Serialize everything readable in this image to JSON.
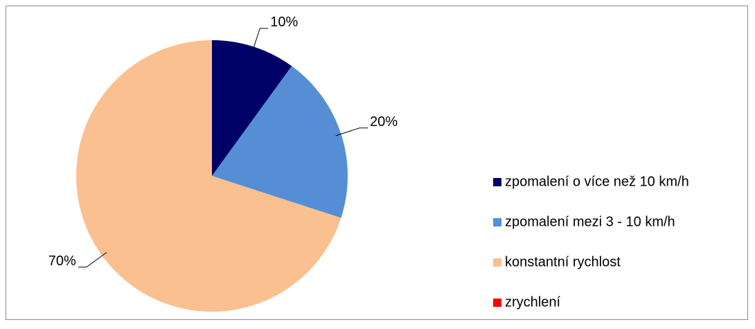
{
  "chart_data": {
    "type": "pie",
    "categories": [
      "zpomalení o více než 10 km/h",
      "zpomalení mezi 3 - 10 km/h",
      "konstantní rychlost",
      "zrychlení"
    ],
    "values": [
      10,
      20,
      70,
      0
    ],
    "value_labels": [
      "10%",
      "20%",
      "70%",
      null
    ],
    "colors": [
      "#000066",
      "#558ed5",
      "#fac090",
      "#ff0000"
    ],
    "legend": "right"
  }
}
